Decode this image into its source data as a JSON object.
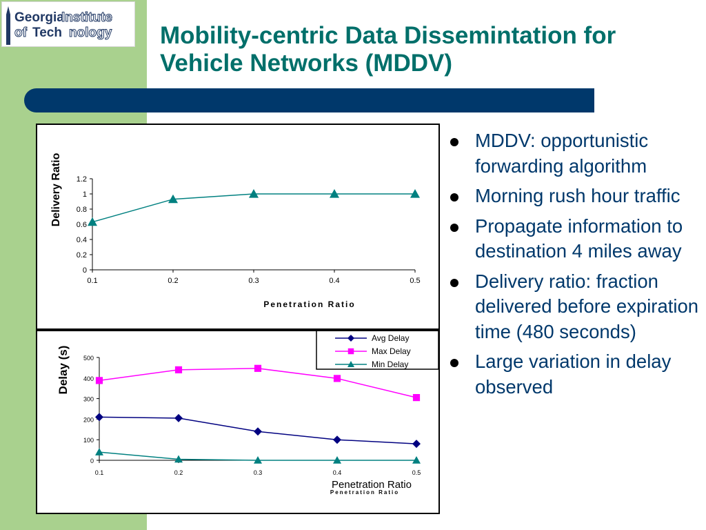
{
  "logo": {
    "line1_part1": "Georgia",
    "line1_part2": "Institute",
    "line2_part1": "of",
    "line2_part2": "Tech",
    "line2_part3": "nology"
  },
  "slide": {
    "title_line1": "Mobility-centric Data Dissemintation for",
    "title_line2": "Vehicle Networks (MDDV)"
  },
  "bullets": [
    "MDDV: opportunistic forwarding algorithm",
    "Morning rush hour traffic",
    "Propagate information to destination 4 miles away",
    "Delivery ratio: fraction delivered before expiration time (480 seconds)",
    "Large variation in delay observed"
  ],
  "colors": {
    "title": "#006f6a",
    "bar": "#00386b",
    "sidebar": "#a9d18e",
    "avg": "#000080",
    "max": "#ff00ff",
    "min": "#008080"
  },
  "chart_data": [
    {
      "type": "line",
      "xlabel": "Penetration Ratio",
      "ylabel": "Delivery Ratio",
      "x": [
        "0.1",
        "0.2",
        "0.3",
        "0.4",
        "0.5"
      ],
      "yticks": [
        "0",
        "0.2",
        "0.4",
        "0.6",
        "0.8",
        "1",
        "1.2"
      ],
      "ylim": [
        0,
        1.2
      ],
      "series": [
        {
          "values": [
            0.63,
            0.93,
            1.0,
            1.0,
            1.0
          ],
          "marker": "triangle",
          "color": "#008080"
        }
      ]
    },
    {
      "type": "line",
      "xlabel": "Penetration Ratio",
      "ylabel": "Delay (s)",
      "x": [
        "0.1",
        "0.2",
        "0.3",
        "0.4",
        "0.5"
      ],
      "yticks": [
        "0",
        "100",
        "200",
        "300",
        "400",
        "500"
      ],
      "ylim": [
        0,
        500
      ],
      "legend_position": "top-right",
      "series": [
        {
          "name": "Avg Delay",
          "values": [
            210,
            205,
            140,
            100,
            80
          ],
          "marker": "diamond",
          "color": "#000080"
        },
        {
          "name": "Max Delay",
          "values": [
            388,
            440,
            447,
            398,
            305
          ],
          "marker": "square",
          "color": "#ff00ff"
        },
        {
          "name": "Min Delay",
          "values": [
            40,
            5,
            0,
            0,
            0
          ],
          "marker": "triangle",
          "color": "#008080"
        }
      ]
    }
  ]
}
